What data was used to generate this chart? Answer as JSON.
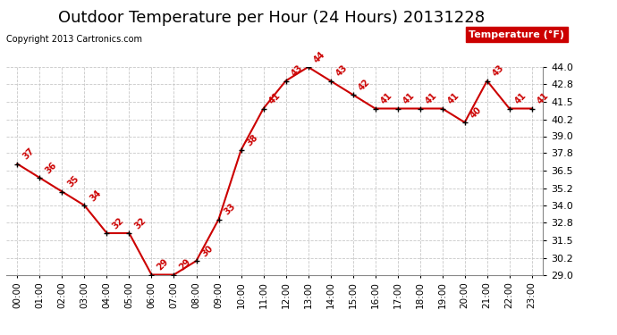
{
  "title": "Outdoor Temperature per Hour (24 Hours) 20131228",
  "copyright": "Copyright 2013 Cartronics.com",
  "legend_label": "Temperature (°F)",
  "hours": [
    0,
    1,
    2,
    3,
    4,
    5,
    6,
    7,
    8,
    9,
    10,
    11,
    12,
    13,
    14,
    15,
    16,
    17,
    18,
    19,
    20,
    21,
    22,
    23
  ],
  "temps": [
    37,
    36,
    35,
    34,
    32,
    32,
    29,
    29,
    30,
    33,
    38,
    41,
    43,
    44,
    43,
    42,
    41,
    41,
    41,
    41,
    40,
    43,
    41,
    41
  ],
  "ylim": [
    29.0,
    44.0
  ],
  "yticks": [
    29.0,
    30.2,
    31.5,
    32.8,
    34.0,
    35.2,
    36.5,
    37.8,
    39.0,
    40.2,
    41.5,
    42.8,
    44.0
  ],
  "line_color": "#cc0000",
  "marker_color": "#000000",
  "bg_color": "#ffffff",
  "grid_color": "#c8c8c8",
  "title_fontsize": 13,
  "copyright_fontsize": 7,
  "legend_bg": "#cc0000",
  "legend_fg": "#ffffff",
  "annotation_fontsize": 7,
  "tick_fontsize": 7.5,
  "ytick_fontsize": 8
}
